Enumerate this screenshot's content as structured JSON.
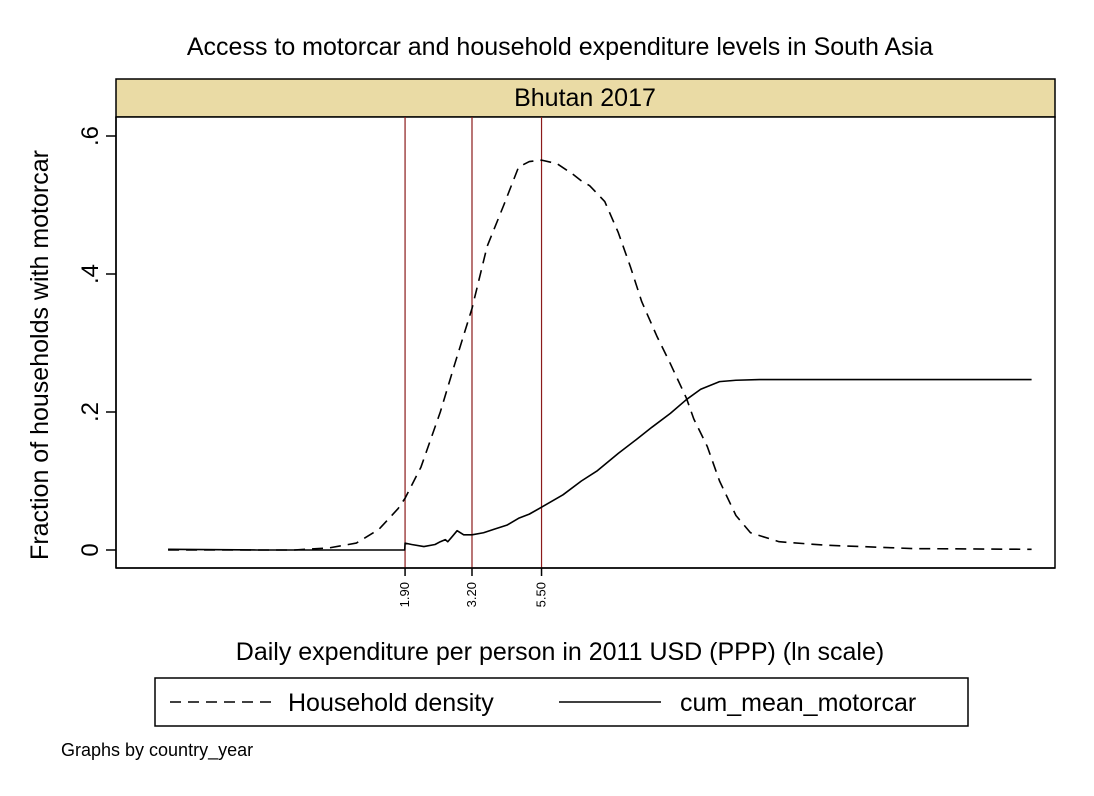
{
  "chart_data": {
    "type": "line",
    "title": "Access to motorcar and household expenditure levels in South Asia",
    "panel_label": "Bhutan 2017",
    "xlabel": "Daily expenditure per person in 2011 USD (PPP) (ln scale)",
    "ylabel": "Fraction of households with motorcar",
    "ylim": [
      0,
      0.6
    ],
    "yticks": [
      {
        "value": 0,
        "label": "0"
      },
      {
        "value": 0.2,
        "label": ".2"
      },
      {
        "value": 0.4,
        "label": ".4"
      },
      {
        "value": 0.6,
        "label": ".6"
      }
    ],
    "xlim": [
      0.2,
      300
    ],
    "x_scale": "log",
    "xticks": [
      {
        "value": 1.9,
        "label": "1.90"
      },
      {
        "value": 3.2,
        "label": "3.20"
      },
      {
        "value": 5.5,
        "label": "5.50"
      }
    ],
    "reference_lines": [
      1.9,
      3.2,
      5.5
    ],
    "grid": false,
    "legend_position": "bottom",
    "note": "Graphs by country_year",
    "colors": {
      "panel_strip": "#eadba5",
      "reference_line": "#8b1a1a",
      "series": "#000000"
    },
    "series": [
      {
        "name": "Household density",
        "style": "dashed",
        "x": [
          0.3,
          0.6,
          0.8,
          1.05,
          1.3,
          1.55,
          1.8,
          1.9,
          2.15,
          2.5,
          2.8,
          3.2,
          3.6,
          4.1,
          4.6,
          5.0,
          5.5,
          6.2,
          7.0,
          7.5,
          8.0,
          9.0,
          10.0,
          11.0,
          12.0,
          13.5,
          15.0,
          17.0,
          18.0,
          20.0,
          22.0,
          25.0,
          28.0,
          35.0,
          50.0,
          100.0,
          250.0
        ],
        "values": [
          0.0,
          0.0,
          0.0,
          0.003,
          0.01,
          0.03,
          0.06,
          0.075,
          0.12,
          0.2,
          0.27,
          0.35,
          0.44,
          0.5,
          0.555,
          0.563,
          0.565,
          0.56,
          0.545,
          0.535,
          0.528,
          0.505,
          0.46,
          0.41,
          0.36,
          0.31,
          0.27,
          0.22,
          0.19,
          0.15,
          0.1,
          0.05,
          0.025,
          0.012,
          0.007,
          0.002,
          0.001
        ]
      },
      {
        "name": "cum_mean_motorcar",
        "style": "solid",
        "x": [
          0.3,
          0.6,
          1.0,
          1.5,
          1.895,
          1.9,
          2.0,
          2.2,
          2.4,
          2.5,
          2.6,
          2.65,
          2.75,
          2.85,
          3.0,
          3.2,
          3.5,
          3.8,
          4.2,
          4.6,
          5.0,
          5.5,
          6.5,
          7.5,
          8.5,
          10.0,
          11.5,
          13.0,
          15.0,
          17.0,
          19.0,
          22.0,
          25.0,
          30.0,
          40.0,
          60.0,
          100.0,
          250.0
        ],
        "values": [
          0.001,
          0.0,
          0.0,
          0.0,
          0.0,
          0.01,
          0.008,
          0.005,
          0.008,
          0.012,
          0.015,
          0.012,
          0.02,
          0.028,
          0.022,
          0.022,
          0.025,
          0.03,
          0.036,
          0.046,
          0.052,
          0.062,
          0.08,
          0.1,
          0.115,
          0.14,
          0.16,
          0.178,
          0.198,
          0.218,
          0.233,
          0.244,
          0.246,
          0.247,
          0.247,
          0.247,
          0.247,
          0.247
        ]
      }
    ]
  }
}
